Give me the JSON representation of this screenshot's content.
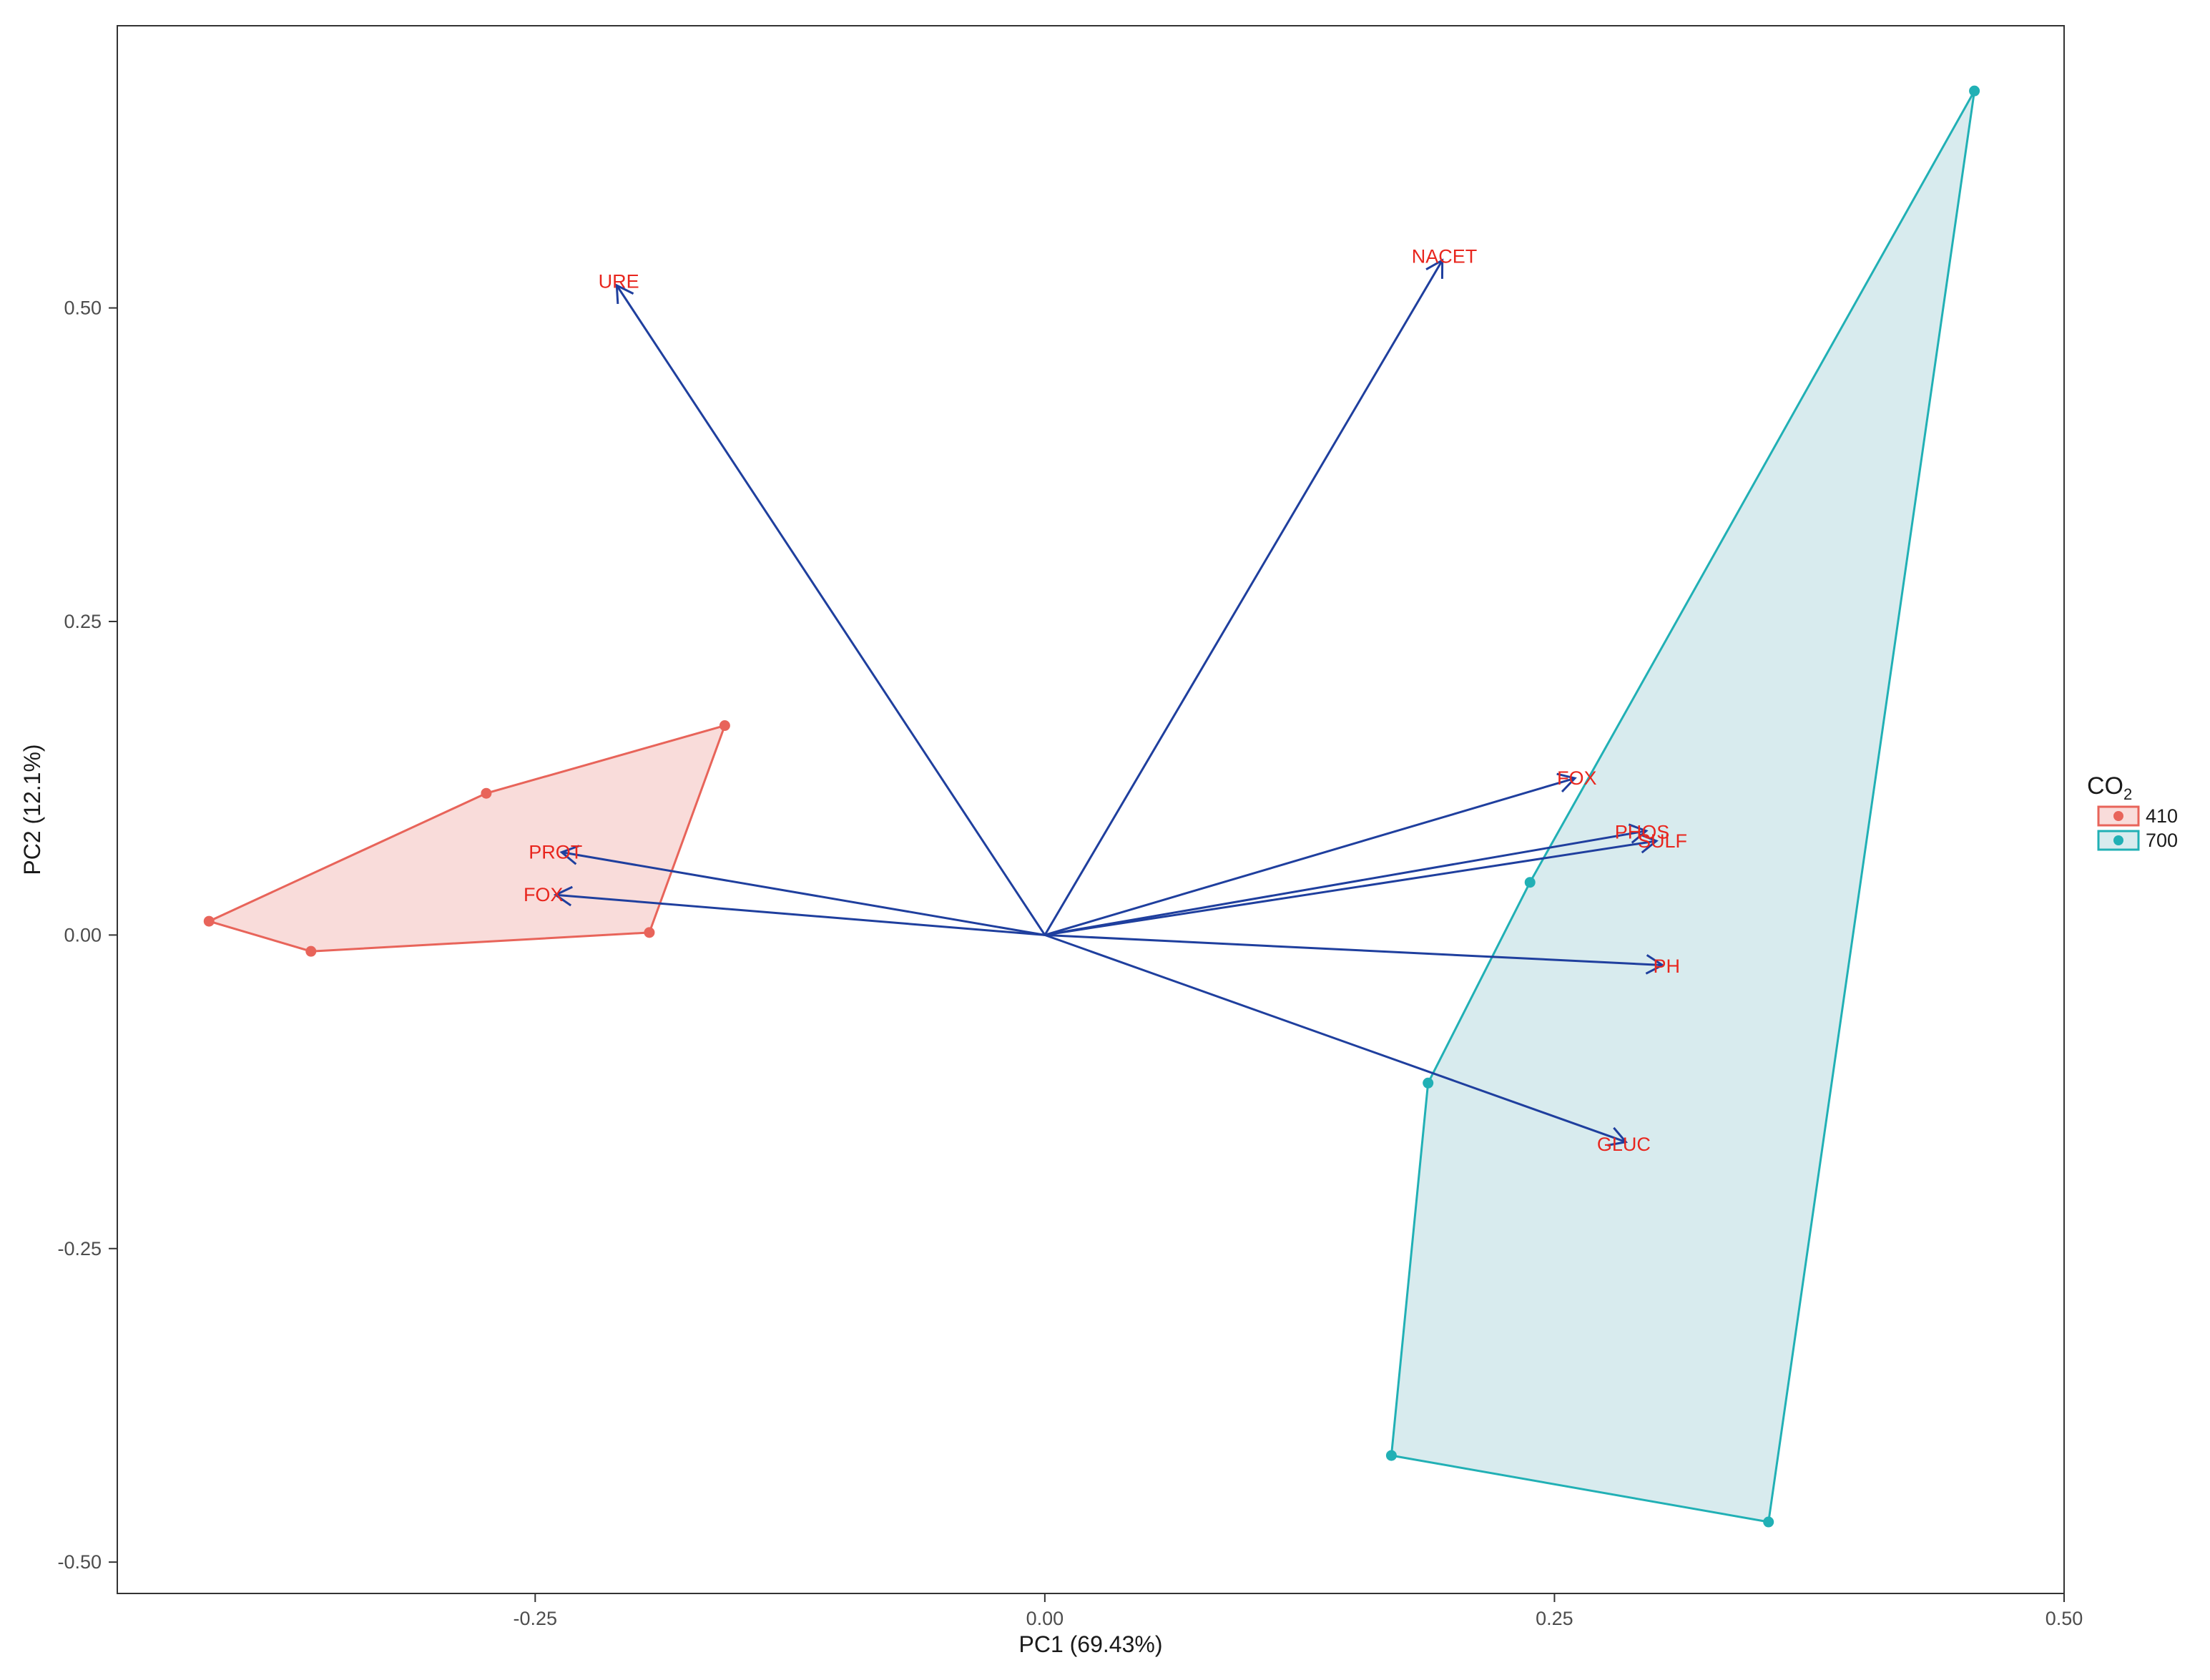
{
  "chart_data": {
    "type": "scatter",
    "subtype": "pca-biplot",
    "xlabel": "PC1 (69.43%)",
    "ylabel": "PC2 (12.1%)",
    "xlim": [
      -0.455,
      0.5
    ],
    "ylim": [
      -0.525,
      0.725
    ],
    "x_ticks": [
      -0.25,
      0.0,
      0.25,
      0.5
    ],
    "x_tick_labels": [
      "-0.25",
      "0.00",
      "0.25",
      "0.50"
    ],
    "y_ticks": [
      -0.5,
      -0.25,
      0.0,
      0.25,
      0.5
    ],
    "y_tick_labels": [
      "-0.50",
      "-0.25",
      "0.00",
      "0.25",
      "0.50"
    ],
    "grid": false,
    "legend": {
      "title": "CO",
      "title_subscript": "2",
      "placement": "right",
      "entries": [
        {
          "label": "410",
          "color": "#e8645a",
          "fill": "#f9dcda"
        },
        {
          "label": "700",
          "color": "#21b0b5",
          "fill": "#d8ebee"
        }
      ]
    },
    "series": [
      {
        "name": "410",
        "color": "#e8645a",
        "fill": "#f9dcda",
        "points": [
          {
            "x": -0.41,
            "y": 0.011
          },
          {
            "x": -0.36,
            "y": -0.013
          },
          {
            "x": -0.194,
            "y": 0.002
          },
          {
            "x": -0.157,
            "y": 0.167
          },
          {
            "x": -0.274,
            "y": 0.113
          }
        ],
        "hull": [
          {
            "x": -0.41,
            "y": 0.011
          },
          {
            "x": -0.36,
            "y": -0.013
          },
          {
            "x": -0.194,
            "y": 0.002
          },
          {
            "x": -0.157,
            "y": 0.167
          },
          {
            "x": -0.274,
            "y": 0.113
          }
        ]
      },
      {
        "name": "700",
        "color": "#21b0b5",
        "fill": "#d8ebee",
        "points": [
          {
            "x": 0.456,
            "y": 0.673
          },
          {
            "x": 0.355,
            "y": -0.468
          },
          {
            "x": 0.17,
            "y": -0.415
          },
          {
            "x": 0.188,
            "y": -0.118
          },
          {
            "x": 0.238,
            "y": 0.042
          }
        ],
        "hull": [
          {
            "x": 0.456,
            "y": 0.673
          },
          {
            "x": 0.355,
            "y": -0.468
          },
          {
            "x": 0.17,
            "y": -0.415
          },
          {
            "x": 0.188,
            "y": -0.118
          },
          {
            "x": 0.238,
            "y": 0.042
          }
        ]
      }
    ],
    "loadings": {
      "color": "#1f3f9e",
      "label_color": "#e8261e",
      "origin": {
        "x": 0.0,
        "y": 0.0
      },
      "vectors": [
        {
          "label": "URE",
          "x": -0.21,
          "y": 0.518,
          "label_x": -0.209,
          "label_y": 0.521
        },
        {
          "label": "NACET",
          "x": 0.195,
          "y": 0.538,
          "label_x": 0.196,
          "label_y": 0.541
        },
        {
          "label": "FOX",
          "x": 0.26,
          "y": 0.125,
          "label_x": 0.261,
          "label_y": 0.125
        },
        {
          "label": "PHOS",
          "x": 0.295,
          "y": 0.083,
          "label_x": 0.293,
          "label_y": 0.082
        },
        {
          "label": "SULF",
          "x": 0.3,
          "y": 0.075,
          "label_x": 0.303,
          "label_y": 0.075
        },
        {
          "label": "PH",
          "x": 0.303,
          "y": -0.024,
          "label_x": 0.305,
          "label_y": -0.025
        },
        {
          "label": "GLUC",
          "x": 0.285,
          "y": -0.165,
          "label_x": 0.284,
          "label_y": -0.167
        },
        {
          "label": "PROT",
          "x": -0.237,
          "y": 0.066,
          "label_x": -0.24,
          "label_y": 0.066
        },
        {
          "label": "FOX",
          "x": -0.24,
          "y": 0.032,
          "label_x": -0.246,
          "label_y": 0.032
        }
      ]
    }
  }
}
